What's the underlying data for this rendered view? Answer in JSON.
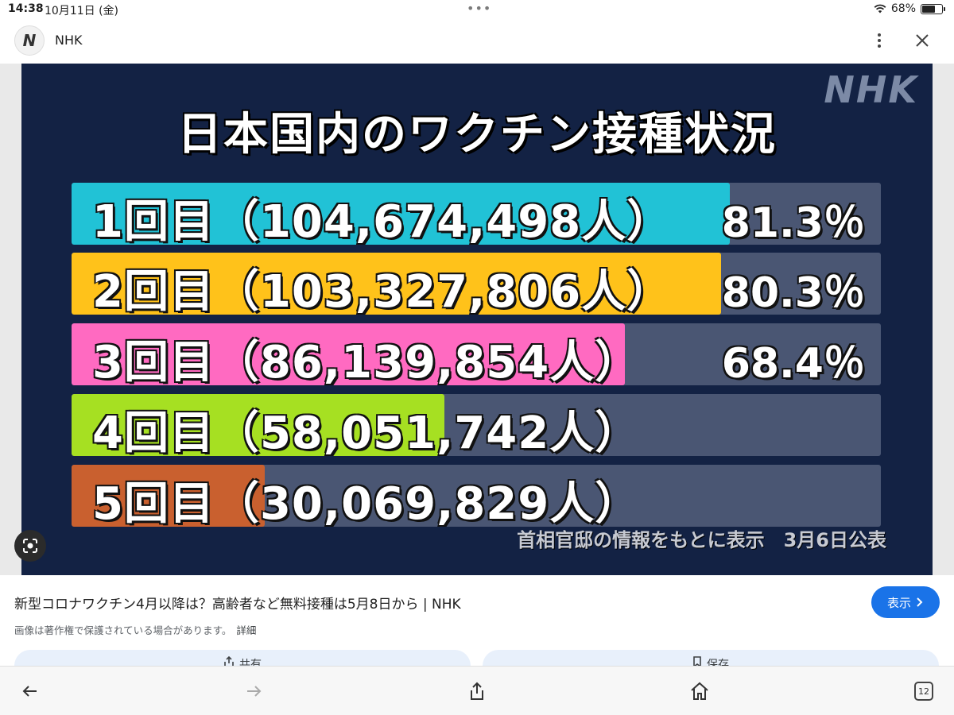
{
  "status_bar": {
    "time": "14:38",
    "date": "10月11日 (金)",
    "battery": "68%",
    "battery_level": 0.68
  },
  "header": {
    "logo_letter": "N",
    "site_name": "NHK"
  },
  "image": {
    "brand_mark": "NHK",
    "title": "日本国内のワクチン接種状況",
    "rows": [
      {
        "label": "1回目（104,674,498人）",
        "percent": "81.3％",
        "fill_fraction": 0.813,
        "color": "#21c2d6"
      },
      {
        "label": "2回目（103,327,806人）",
        "percent": "80.3％",
        "fill_fraction": 0.803,
        "color": "#ffc21a"
      },
      {
        "label": "3回目（86,139,854人）",
        "percent": "68.4％",
        "fill_fraction": 0.684,
        "color": "#ff6ac1"
      },
      {
        "label": "4回目（58,051,742人）",
        "percent": "",
        "fill_fraction": 0.461,
        "color": "#a6e022"
      },
      {
        "label": "5回目（30,069,829人）",
        "percent": "",
        "fill_fraction": 0.239,
        "color": "#c9602f"
      }
    ],
    "source_note": "首相官邸の情報をもとに表示　3月6日公表"
  },
  "caption": {
    "title": "新型コロナワクチン4月以降は？高齢者など無料接種は5月8日から | NHK",
    "copyright_note": "画像は著作権で保護されている場合があります。",
    "detail_link": "詳細",
    "view_button": "表示"
  },
  "actions": {
    "share": "共有",
    "save": "保存"
  },
  "toolbar": {
    "tab_count": "12"
  }
}
